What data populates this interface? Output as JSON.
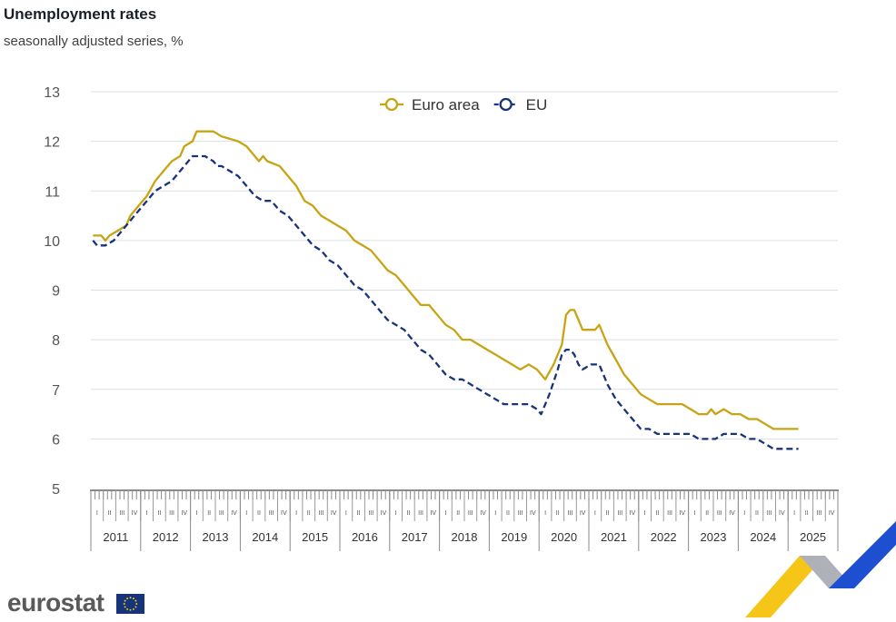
{
  "header": {
    "title": "Unemployment rates",
    "subtitle": "seasonally adjusted series, %"
  },
  "branding": {
    "logo_text": "eurostat"
  },
  "colors": {
    "euro_area": "#c8a414",
    "eu": "#17337a",
    "grid": "#d8e0e6",
    "axis_text": "#555555"
  },
  "chart_data": {
    "type": "line",
    "ylim": [
      5,
      13
    ],
    "yticks": [
      5,
      6,
      7,
      8,
      9,
      10,
      11,
      12,
      13
    ],
    "years": [
      "2011",
      "2012",
      "2013",
      "2014",
      "2015",
      "2016",
      "2017",
      "2018",
      "2019",
      "2020",
      "2021",
      "2022",
      "2023",
      "2024",
      "2025"
    ],
    "quarter_labels": [
      "I",
      "II",
      "III",
      "IV"
    ],
    "x_start": "2011-01",
    "x_end": "2025-12",
    "grid": true,
    "legend_position": "top-center",
    "series": [
      {
        "name": "Euro area",
        "style": "solid",
        "points": [
          [
            "2011-01",
            10.1
          ],
          [
            "2011-03",
            10.1
          ],
          [
            "2011-04",
            10.0
          ],
          [
            "2011-05",
            10.1
          ],
          [
            "2011-07",
            10.2
          ],
          [
            "2011-09",
            10.3
          ],
          [
            "2011-10",
            10.5
          ],
          [
            "2011-12",
            10.7
          ],
          [
            "2012-02",
            10.9
          ],
          [
            "2012-04",
            11.2
          ],
          [
            "2012-06",
            11.4
          ],
          [
            "2012-08",
            11.6
          ],
          [
            "2012-10",
            11.7
          ],
          [
            "2012-11",
            11.9
          ],
          [
            "2013-01",
            12.0
          ],
          [
            "2013-02",
            12.2
          ],
          [
            "2013-06",
            12.2
          ],
          [
            "2013-08",
            12.1
          ],
          [
            "2013-12",
            12.0
          ],
          [
            "2014-02",
            11.9
          ],
          [
            "2014-03",
            11.8
          ],
          [
            "2014-05",
            11.6
          ],
          [
            "2014-06",
            11.7
          ],
          [
            "2014-07",
            11.6
          ],
          [
            "2014-10",
            11.5
          ],
          [
            "2014-12",
            11.3
          ],
          [
            "2015-02",
            11.1
          ],
          [
            "2015-04",
            10.8
          ],
          [
            "2015-06",
            10.7
          ],
          [
            "2015-08",
            10.5
          ],
          [
            "2015-10",
            10.4
          ],
          [
            "2015-12",
            10.3
          ],
          [
            "2016-02",
            10.2
          ],
          [
            "2016-04",
            10.0
          ],
          [
            "2016-06",
            9.9
          ],
          [
            "2016-08",
            9.8
          ],
          [
            "2016-10",
            9.6
          ],
          [
            "2016-12",
            9.4
          ],
          [
            "2017-02",
            9.3
          ],
          [
            "2017-04",
            9.1
          ],
          [
            "2017-06",
            8.9
          ],
          [
            "2017-08",
            8.7
          ],
          [
            "2017-10",
            8.7
          ],
          [
            "2017-12",
            8.5
          ],
          [
            "2018-02",
            8.3
          ],
          [
            "2018-04",
            8.2
          ],
          [
            "2018-06",
            8.0
          ],
          [
            "2018-08",
            8.0
          ],
          [
            "2018-10",
            7.9
          ],
          [
            "2018-12",
            7.8
          ],
          [
            "2019-02",
            7.7
          ],
          [
            "2019-04",
            7.6
          ],
          [
            "2019-06",
            7.5
          ],
          [
            "2019-08",
            7.4
          ],
          [
            "2019-10",
            7.5
          ],
          [
            "2019-12",
            7.4
          ],
          [
            "2020-01",
            7.3
          ],
          [
            "2020-02",
            7.2
          ],
          [
            "2020-04",
            7.5
          ],
          [
            "2020-06",
            7.9
          ],
          [
            "2020-07",
            8.5
          ],
          [
            "2020-08",
            8.6
          ],
          [
            "2020-09",
            8.6
          ],
          [
            "2020-10",
            8.4
          ],
          [
            "2020-11",
            8.2
          ],
          [
            "2021-02",
            8.2
          ],
          [
            "2021-03",
            8.3
          ],
          [
            "2021-05",
            7.9
          ],
          [
            "2021-07",
            7.6
          ],
          [
            "2021-09",
            7.3
          ],
          [
            "2021-11",
            7.1
          ],
          [
            "2022-01",
            6.9
          ],
          [
            "2022-03",
            6.8
          ],
          [
            "2022-05",
            6.7
          ],
          [
            "2022-07",
            6.7
          ],
          [
            "2022-09",
            6.7
          ],
          [
            "2022-11",
            6.7
          ],
          [
            "2023-01",
            6.6
          ],
          [
            "2023-03",
            6.5
          ],
          [
            "2023-05",
            6.5
          ],
          [
            "2023-06",
            6.6
          ],
          [
            "2023-07",
            6.5
          ],
          [
            "2023-09",
            6.6
          ],
          [
            "2023-11",
            6.5
          ],
          [
            "2024-01",
            6.5
          ],
          [
            "2024-03",
            6.4
          ],
          [
            "2024-05",
            6.4
          ],
          [
            "2024-07",
            6.3
          ],
          [
            "2024-09",
            6.2
          ],
          [
            "2024-11",
            6.2
          ],
          [
            "2025-01",
            6.2
          ],
          [
            "2025-03",
            6.2
          ]
        ]
      },
      {
        "name": "EU",
        "style": "dashed",
        "points": [
          [
            "2011-01",
            10.0
          ],
          [
            "2011-02",
            9.9
          ],
          [
            "2011-04",
            9.9
          ],
          [
            "2011-06",
            10.0
          ],
          [
            "2011-08",
            10.2
          ],
          [
            "2011-10",
            10.4
          ],
          [
            "2011-12",
            10.6
          ],
          [
            "2012-02",
            10.8
          ],
          [
            "2012-04",
            11.0
          ],
          [
            "2012-06",
            11.1
          ],
          [
            "2012-08",
            11.2
          ],
          [
            "2012-10",
            11.4
          ],
          [
            "2012-12",
            11.6
          ],
          [
            "2013-01",
            11.7
          ],
          [
            "2013-04",
            11.7
          ],
          [
            "2013-06",
            11.6
          ],
          [
            "2013-07",
            11.5
          ],
          [
            "2013-08",
            11.5
          ],
          [
            "2013-10",
            11.4
          ],
          [
            "2013-12",
            11.3
          ],
          [
            "2014-02",
            11.1
          ],
          [
            "2014-04",
            10.9
          ],
          [
            "2014-06",
            10.8
          ],
          [
            "2014-08",
            10.8
          ],
          [
            "2014-10",
            10.6
          ],
          [
            "2014-12",
            10.5
          ],
          [
            "2015-02",
            10.3
          ],
          [
            "2015-04",
            10.1
          ],
          [
            "2015-06",
            9.9
          ],
          [
            "2015-08",
            9.8
          ],
          [
            "2015-10",
            9.6
          ],
          [
            "2015-12",
            9.5
          ],
          [
            "2016-02",
            9.3
          ],
          [
            "2016-04",
            9.1
          ],
          [
            "2016-06",
            9.0
          ],
          [
            "2016-08",
            8.8
          ],
          [
            "2016-10",
            8.6
          ],
          [
            "2016-12",
            8.4
          ],
          [
            "2017-02",
            8.3
          ],
          [
            "2017-04",
            8.2
          ],
          [
            "2017-06",
            8.0
          ],
          [
            "2017-08",
            7.8
          ],
          [
            "2017-10",
            7.7
          ],
          [
            "2017-12",
            7.5
          ],
          [
            "2018-02",
            7.3
          ],
          [
            "2018-04",
            7.2
          ],
          [
            "2018-06",
            7.2
          ],
          [
            "2018-08",
            7.1
          ],
          [
            "2018-10",
            7.0
          ],
          [
            "2018-12",
            6.9
          ],
          [
            "2019-02",
            6.8
          ],
          [
            "2019-04",
            6.7
          ],
          [
            "2019-06",
            6.7
          ],
          [
            "2019-08",
            6.7
          ],
          [
            "2019-10",
            6.7
          ],
          [
            "2019-12",
            6.6
          ],
          [
            "2020-01",
            6.5
          ],
          [
            "2020-03",
            6.9
          ],
          [
            "2020-05",
            7.4
          ],
          [
            "2020-06",
            7.7
          ],
          [
            "2020-07",
            7.8
          ],
          [
            "2020-08",
            7.8
          ],
          [
            "2020-09",
            7.7
          ],
          [
            "2020-10",
            7.5
          ],
          [
            "2020-11",
            7.4
          ],
          [
            "2021-01",
            7.5
          ],
          [
            "2021-03",
            7.5
          ],
          [
            "2021-05",
            7.1
          ],
          [
            "2021-07",
            6.8
          ],
          [
            "2021-09",
            6.6
          ],
          [
            "2021-11",
            6.4
          ],
          [
            "2022-01",
            6.2
          ],
          [
            "2022-03",
            6.2
          ],
          [
            "2022-05",
            6.1
          ],
          [
            "2022-07",
            6.1
          ],
          [
            "2022-09",
            6.1
          ],
          [
            "2022-11",
            6.1
          ],
          [
            "2023-01",
            6.1
          ],
          [
            "2023-03",
            6.0
          ],
          [
            "2023-05",
            6.0
          ],
          [
            "2023-07",
            6.0
          ],
          [
            "2023-09",
            6.1
          ],
          [
            "2023-11",
            6.1
          ],
          [
            "2024-01",
            6.1
          ],
          [
            "2024-03",
            6.0
          ],
          [
            "2024-05",
            6.0
          ],
          [
            "2024-07",
            5.9
          ],
          [
            "2024-09",
            5.8
          ],
          [
            "2024-11",
            5.8
          ],
          [
            "2025-01",
            5.8
          ],
          [
            "2025-03",
            5.8
          ]
        ]
      }
    ]
  }
}
